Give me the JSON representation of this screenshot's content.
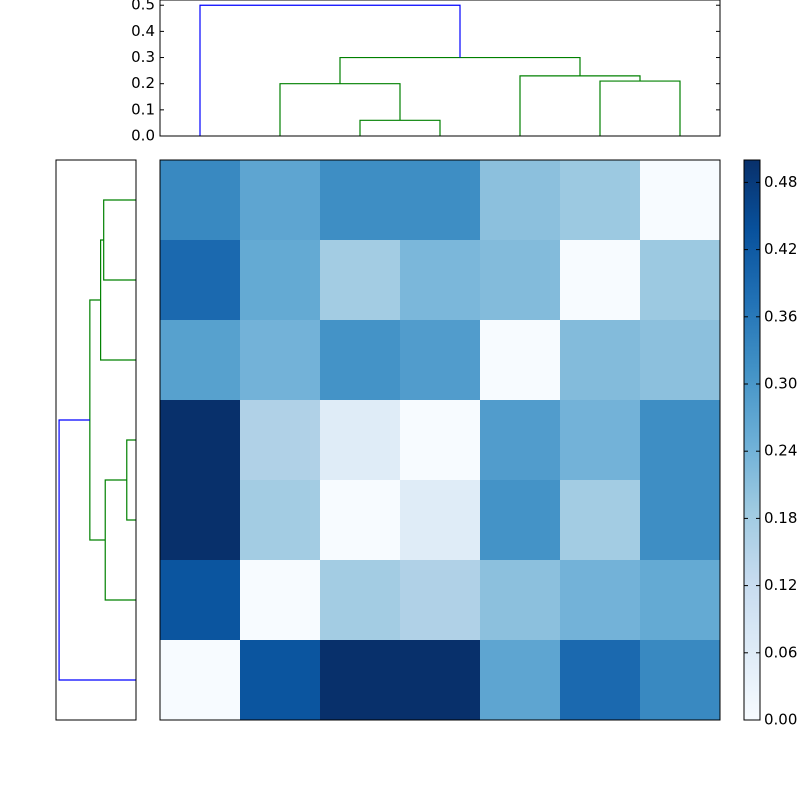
{
  "chart_data": [
    {
      "type": "dendrogram",
      "orientation": "top",
      "xlim": [
        0,
        70
      ],
      "ylim": [
        0,
        0.52
      ],
      "yticks": [
        {
          "value": 0,
          "label": "0.0"
        },
        0.1,
        0.2,
        0.3,
        0.4,
        0.5
      ],
      "links": [
        {
          "icoord": [
            25,
            25,
            35,
            35
          ],
          "dcoord": [
            0,
            0.06,
            0.06,
            0
          ],
          "color": "#008000"
        },
        {
          "icoord": [
            15,
            15,
            30,
            30
          ],
          "dcoord": [
            0,
            0.2,
            0.2,
            0.06
          ],
          "color": "#008000"
        },
        {
          "icoord": [
            55,
            55,
            65,
            65
          ],
          "dcoord": [
            0,
            0.21,
            0.21,
            0
          ],
          "color": "#008000"
        },
        {
          "icoord": [
            45,
            45,
            60,
            60
          ],
          "dcoord": [
            0,
            0.23,
            0.23,
            0.21
          ],
          "color": "#008000"
        },
        {
          "icoord": [
            22.5,
            22.5,
            52.5,
            52.5
          ],
          "dcoord": [
            0.2,
            0.3,
            0.3,
            0.23
          ],
          "color": "#008000"
        },
        {
          "icoord": [
            5,
            5,
            37.5,
            37.5
          ],
          "dcoord": [
            0,
            0.5,
            0.5,
            0.3
          ],
          "color": "#0000ff"
        }
      ]
    },
    {
      "type": "dendrogram",
      "orientation": "left",
      "xlim": [
        0.52,
        0
      ],
      "ylim": [
        70,
        0
      ],
      "links": [
        {
          "icoord": [
            35,
            35,
            45,
            45
          ],
          "dcoord": [
            0,
            0.06,
            0.06,
            0
          ],
          "color": "#008000"
        },
        {
          "icoord": [
            40,
            40,
            55,
            55
          ],
          "dcoord": [
            0.06,
            0.2,
            0.2,
            0
          ],
          "color": "#008000"
        },
        {
          "icoord": [
            5,
            5,
            15,
            15
          ],
          "dcoord": [
            0,
            0.21,
            0.21,
            0
          ],
          "color": "#008000"
        },
        {
          "icoord": [
            10,
            10,
            25,
            25
          ],
          "dcoord": [
            0.21,
            0.23,
            0.23,
            0
          ],
          "color": "#008000"
        },
        {
          "icoord": [
            17.5,
            17.5,
            47.5,
            47.5
          ],
          "dcoord": [
            0.23,
            0.3,
            0.3,
            0.2
          ],
          "color": "#008000"
        },
        {
          "icoord": [
            32.5,
            32.5,
            65,
            65
          ],
          "dcoord": [
            0.3,
            0.5,
            0.5,
            0
          ],
          "color": "#0000ff"
        }
      ]
    },
    {
      "type": "heatmap",
      "rows": [
        [
          0.33,
          0.27,
          0.32,
          0.32,
          0.21,
          0.19,
          0.0
        ],
        [
          0.39,
          0.26,
          0.18,
          0.23,
          0.22,
          0.0,
          0.19
        ],
        [
          0.28,
          0.24,
          0.31,
          0.29,
          0.0,
          0.22,
          0.21
        ],
        [
          0.5,
          0.16,
          0.06,
          0.0,
          0.29,
          0.24,
          0.32
        ],
        [
          0.5,
          0.18,
          0.0,
          0.06,
          0.31,
          0.18,
          0.32
        ],
        [
          0.43,
          0.0,
          0.18,
          0.16,
          0.21,
          0.24,
          0.26
        ],
        [
          0.0,
          0.43,
          0.5,
          0.5,
          0.27,
          0.39,
          0.33
        ]
      ],
      "clim": [
        0,
        0.5
      ],
      "colormap": [
        "#f7fbff",
        "#deebf7",
        "#c6dbef",
        "#9ecae1",
        "#6baed6",
        "#4292c6",
        "#2171b5",
        "#08519c",
        "#08306b"
      ],
      "colorbar_ticks": [
        {
          "value": 0,
          "label": "0.00"
        },
        {
          "value": 0.06,
          "label": "0.06"
        },
        {
          "value": 0.12,
          "label": "0.12"
        },
        {
          "value": 0.18,
          "label": "0.18"
        },
        {
          "value": 0.24,
          "label": "0.24"
        },
        {
          "value": 0.3,
          "label": "0.30"
        },
        {
          "value": 0.36,
          "label": "0.36"
        },
        {
          "value": 0.42,
          "label": "0.42"
        },
        {
          "value": 0.48,
          "label": "0.48"
        }
      ]
    }
  ]
}
